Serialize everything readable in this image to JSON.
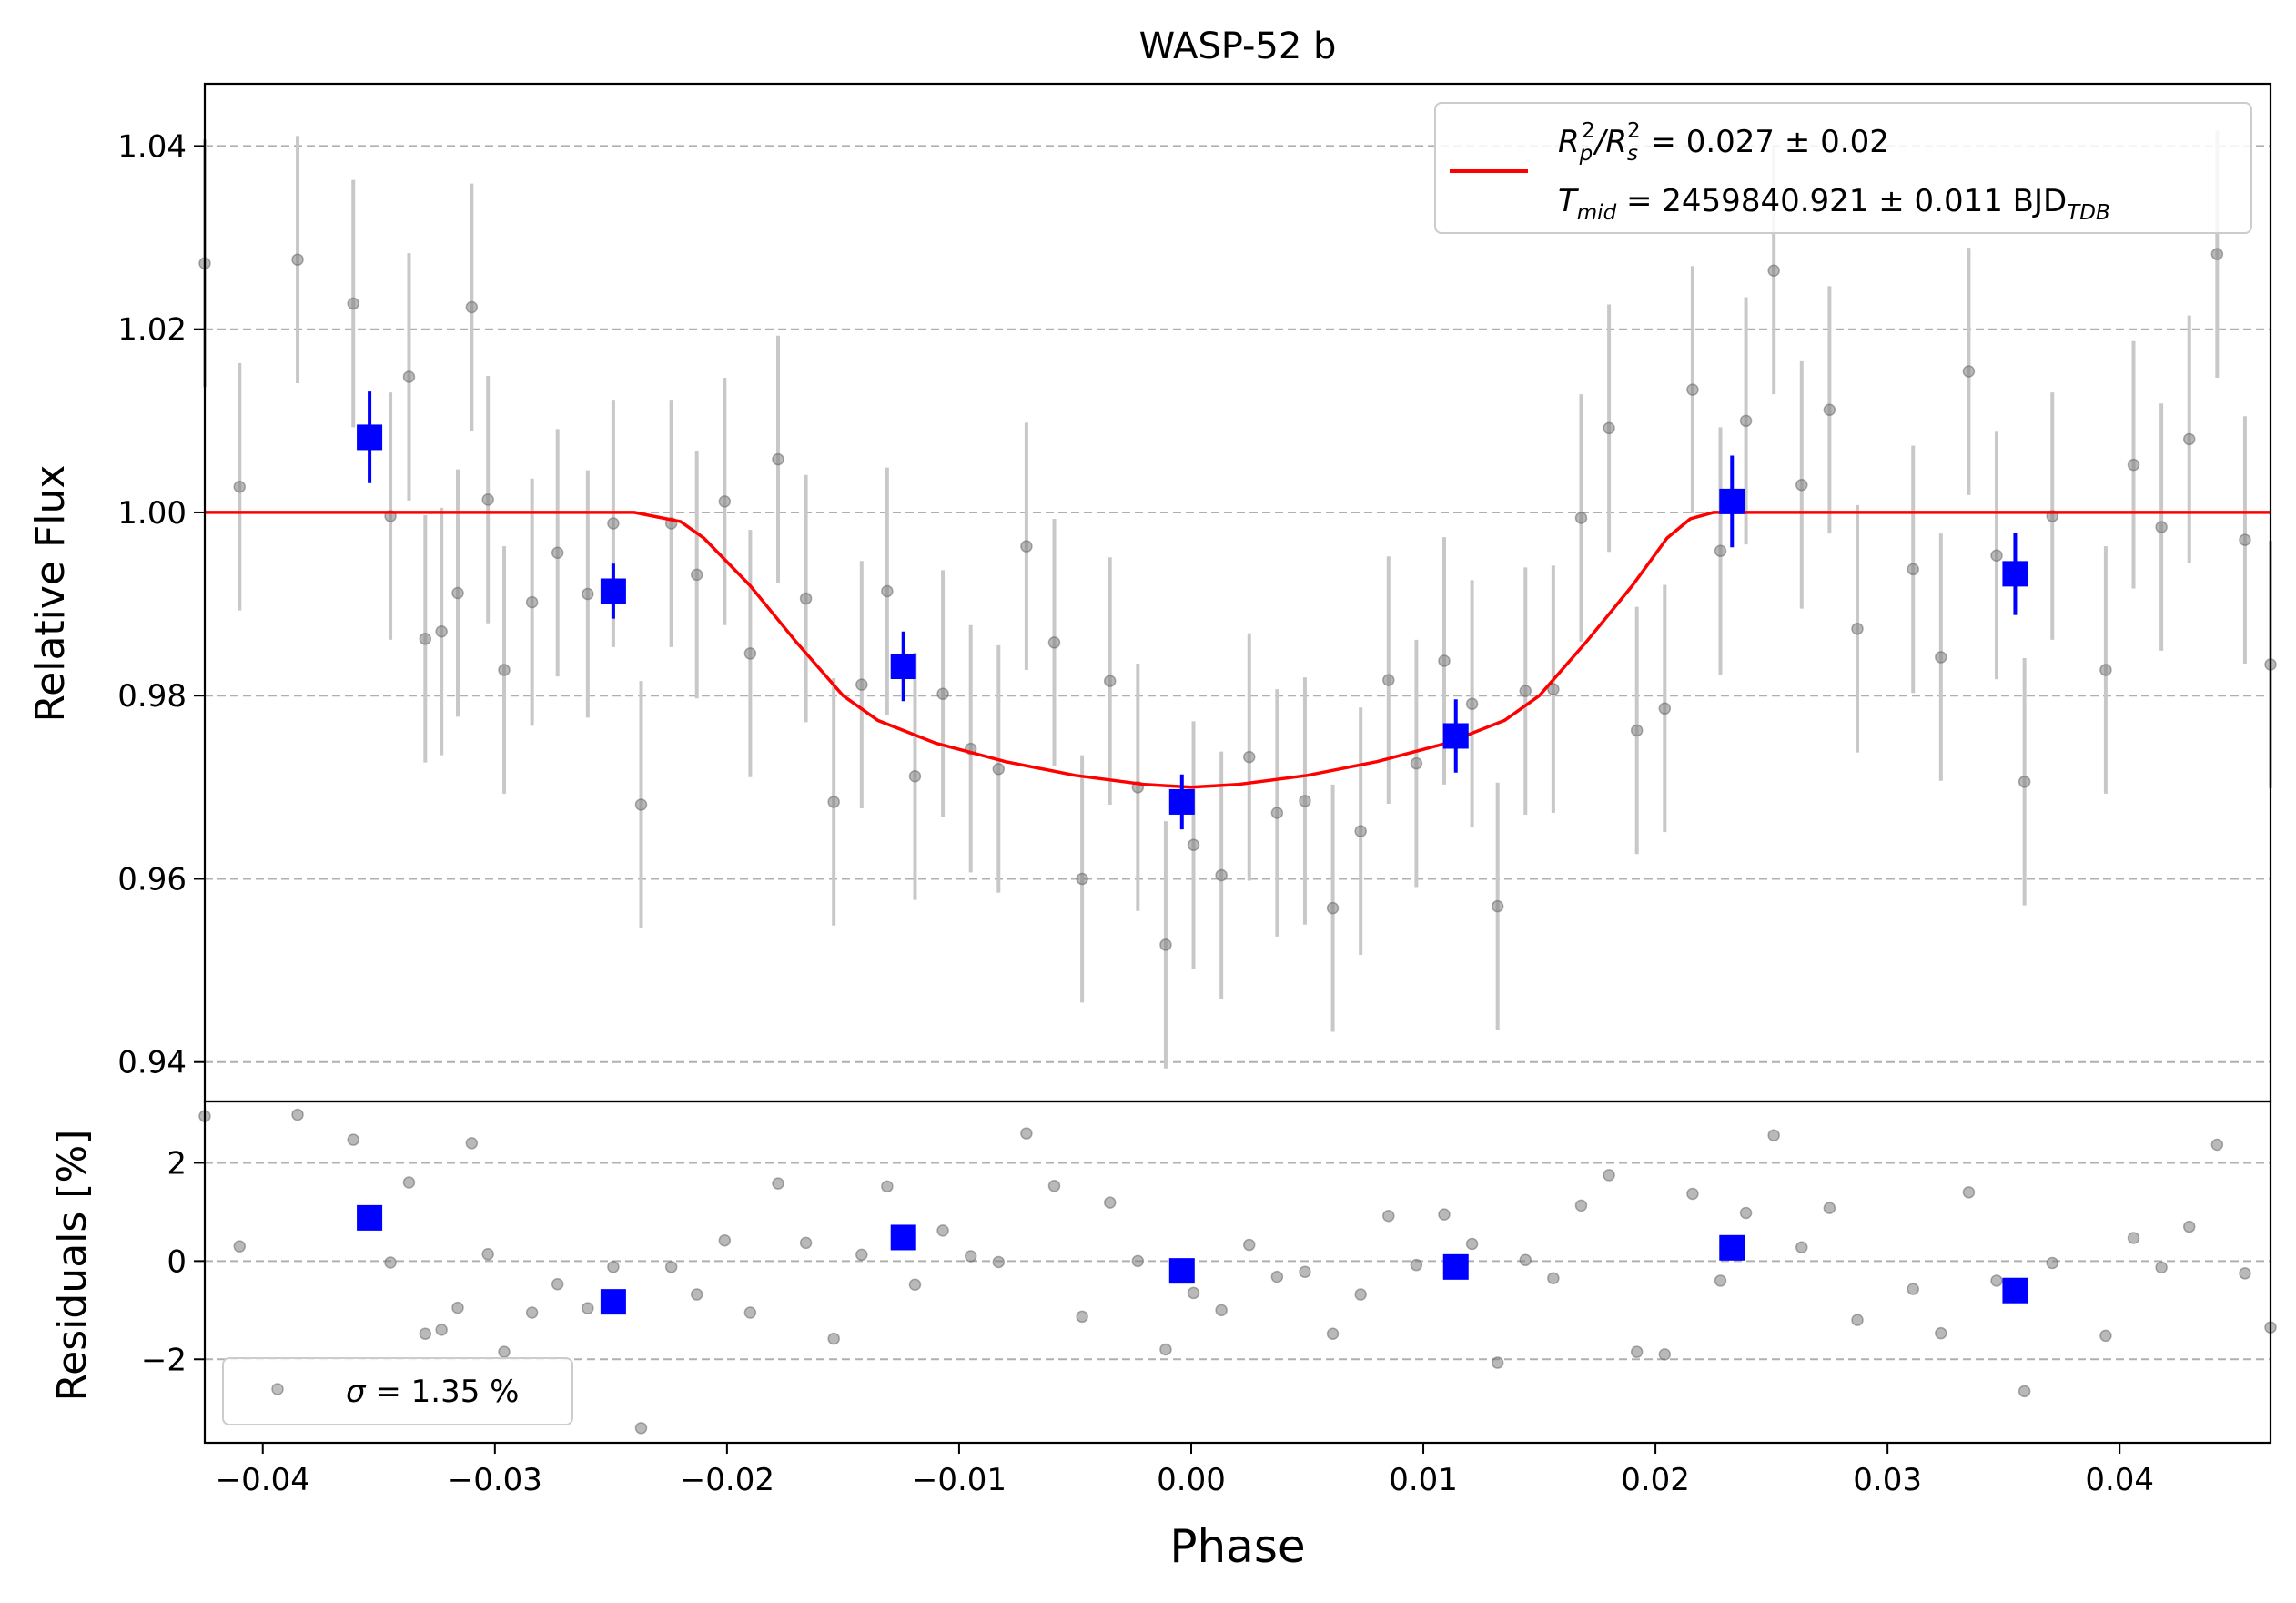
{
  "chart_data": {
    "type": "scatter",
    "title": "WASP-52 b",
    "xlabel": "Phase",
    "xlim": [
      -0.0425,
      0.0465
    ],
    "x_ticks": [
      -0.04,
      -0.03,
      -0.02,
      -0.01,
      0.0,
      0.01,
      0.02,
      0.03,
      0.04
    ],
    "x_tick_labels": [
      "−0.04",
      "−0.03",
      "−0.02",
      "−0.01",
      "0.00",
      "0.01",
      "0.02",
      "0.03",
      "0.04"
    ],
    "grid": "horizontal dashed",
    "colors": {
      "raw": "#808080",
      "errorbar": "#c8c8c8",
      "binned": "#0000ff",
      "model": "#ff0000"
    },
    "flux_panel": {
      "ylabel": "Relative Flux",
      "ylim": [
        0.9357,
        1.0468
      ],
      "y_ticks": [
        0.94,
        0.96,
        0.98,
        1.0,
        1.02,
        1.04
      ],
      "y_tick_labels": [
        "0.94",
        "0.96",
        "0.98",
        "1.00",
        "1.02",
        "1.04"
      ],
      "legend_position": "top-right",
      "legend_line1": {
        "a": "R",
        "b": "p",
        "c": "2",
        "d": "/R",
        "e": "s",
        "f": "2",
        "g": " = 0.027 ± 0.02"
      },
      "legend_line2": {
        "a": "T",
        "b": "mid",
        "c": " = 2459840.921 ± 0.011 BJD",
        "d": "TDB"
      },
      "raw_points": [
        {
          "x": -0.0425,
          "y": 1.0272,
          "err": 0.0135
        },
        {
          "x": -0.041,
          "y": 1.0028,
          "err": 0.0135
        },
        {
          "x": -0.0385,
          "y": 1.0276,
          "err": 0.0135
        },
        {
          "x": -0.0361,
          "y": 1.0228,
          "err": 0.0135
        },
        {
          "x": -0.0345,
          "y": 0.9996,
          "err": 0.0135
        },
        {
          "x": -0.0337,
          "y": 1.0148,
          "err": 0.0135
        },
        {
          "x": -0.033,
          "y": 0.9862,
          "err": 0.0135
        },
        {
          "x": -0.0323,
          "y": 0.987,
          "err": 0.0135
        },
        {
          "x": -0.0316,
          "y": 0.9912,
          "err": 0.0135
        },
        {
          "x": -0.031,
          "y": 1.0224,
          "err": 0.0135
        },
        {
          "x": -0.0303,
          "y": 1.0014,
          "err": 0.0135
        },
        {
          "x": -0.0296,
          "y": 0.9828,
          "err": 0.0135
        },
        {
          "x": -0.0284,
          "y": 0.9902,
          "err": 0.0135
        },
        {
          "x": -0.0273,
          "y": 0.9956,
          "err": 0.0135
        },
        {
          "x": -0.026,
          "y": 0.9911,
          "err": 0.0135
        },
        {
          "x": -0.0249,
          "y": 0.9988,
          "err": 0.0135
        },
        {
          "x": -0.0237,
          "y": 0.9681,
          "err": 0.0135
        },
        {
          "x": -0.0224,
          "y": 0.9988,
          "err": 0.0135
        },
        {
          "x": -0.0213,
          "y": 0.9932,
          "err": 0.0135
        },
        {
          "x": -0.0201,
          "y": 1.0012,
          "err": 0.0135
        },
        {
          "x": -0.019,
          "y": 0.9846,
          "err": 0.0135
        },
        {
          "x": -0.0178,
          "y": 1.0058,
          "err": 0.0135
        },
        {
          "x": -0.0166,
          "y": 0.9906,
          "err": 0.0135
        },
        {
          "x": -0.0154,
          "y": 0.9684,
          "err": 0.0135
        },
        {
          "x": -0.0142,
          "y": 0.9812,
          "err": 0.0135
        },
        {
          "x": -0.0131,
          "y": 0.9914,
          "err": 0.0135
        },
        {
          "x": -0.0119,
          "y": 0.9712,
          "err": 0.0135
        },
        {
          "x": -0.0107,
          "y": 0.9802,
          "err": 0.0135
        },
        {
          "x": -0.0095,
          "y": 0.9742,
          "err": 0.0135
        },
        {
          "x": -0.0083,
          "y": 0.972,
          "err": 0.0135
        },
        {
          "x": -0.0071,
          "y": 0.9963,
          "err": 0.0135
        },
        {
          "x": -0.0059,
          "y": 0.9858,
          "err": 0.0135
        },
        {
          "x": -0.0047,
          "y": 0.96,
          "err": 0.0135
        },
        {
          "x": -0.0035,
          "y": 0.9816,
          "err": 0.0135
        },
        {
          "x": -0.0023,
          "y": 0.97,
          "err": 0.0135
        },
        {
          "x": -0.0011,
          "y": 0.9528,
          "err": 0.0135
        },
        {
          "x": 0.0001,
          "y": 0.9637,
          "err": 0.0135
        },
        {
          "x": 0.0013,
          "y": 0.9604,
          "err": 0.0135
        },
        {
          "x": 0.0025,
          "y": 0.9733,
          "err": 0.0135
        },
        {
          "x": 0.0037,
          "y": 0.9672,
          "err": 0.0135
        },
        {
          "x": 0.0049,
          "y": 0.9685,
          "err": 0.0135
        },
        {
          "x": 0.0061,
          "y": 0.9568,
          "err": 0.0135
        },
        {
          "x": 0.0073,
          "y": 0.9652,
          "err": 0.0135
        },
        {
          "x": 0.0085,
          "y": 0.9817,
          "err": 0.0135
        },
        {
          "x": 0.0097,
          "y": 0.9726,
          "err": 0.0135
        },
        {
          "x": 0.0109,
          "y": 0.9838,
          "err": 0.0135
        },
        {
          "x": 0.0121,
          "y": 0.9791,
          "err": 0.0135
        },
        {
          "x": 0.0132,
          "y": 0.957,
          "err": 0.0135
        },
        {
          "x": 0.0144,
          "y": 0.9805,
          "err": 0.0135
        },
        {
          "x": 0.0156,
          "y": 0.9807,
          "err": 0.0135
        },
        {
          "x": 0.0168,
          "y": 0.9994,
          "err": 0.0135
        },
        {
          "x": 0.018,
          "y": 1.0092,
          "err": 0.0135
        },
        {
          "x": 0.0192,
          "y": 0.9762,
          "err": 0.0135
        },
        {
          "x": 0.0204,
          "y": 0.9786,
          "err": 0.0135
        },
        {
          "x": 0.0216,
          "y": 1.0134,
          "err": 0.0135
        },
        {
          "x": 0.0228,
          "y": 0.9958,
          "err": 0.0135
        },
        {
          "x": 0.0239,
          "y": 1.01,
          "err": 0.0135
        },
        {
          "x": 0.0251,
          "y": 1.0264,
          "err": 0.0135
        },
        {
          "x": 0.0263,
          "y": 1.003,
          "err": 0.0135
        },
        {
          "x": 0.0275,
          "y": 1.0112,
          "err": 0.0135
        },
        {
          "x": 0.0287,
          "y": 0.9873,
          "err": 0.0135
        },
        {
          "x": 0.0311,
          "y": 0.9938,
          "err": 0.0135
        },
        {
          "x": 0.0323,
          "y": 0.9842,
          "err": 0.0135
        },
        {
          "x": 0.0335,
          "y": 1.0154,
          "err": 0.0135
        },
        {
          "x": 0.0347,
          "y": 0.9953,
          "err": 0.0135
        },
        {
          "x": 0.0359,
          "y": 0.9706,
          "err": 0.0135
        },
        {
          "x": 0.0371,
          "y": 0.9996,
          "err": 0.0135
        },
        {
          "x": 0.0394,
          "y": 0.9828,
          "err": 0.0135
        },
        {
          "x": 0.0406,
          "y": 1.0052,
          "err": 0.0135
        },
        {
          "x": 0.0418,
          "y": 0.9984,
          "err": 0.0135
        },
        {
          "x": 0.043,
          "y": 1.008,
          "err": 0.0135
        },
        {
          "x": 0.0442,
          "y": 1.0282,
          "err": 0.0135
        },
        {
          "x": 0.0454,
          "y": 0.997,
          "err": 0.0135
        },
        {
          "x": 0.0465,
          "y": 0.9834,
          "err": 0.0135
        }
      ],
      "binned_points": [
        {
          "x": -0.0354,
          "y": 1.0082,
          "err": 0.005
        },
        {
          "x": -0.0249,
          "y": 0.9914,
          "err": 0.003
        },
        {
          "x": -0.0124,
          "y": 0.9832,
          "err": 0.0038
        },
        {
          "x": -0.0004,
          "y": 0.9684,
          "err": 0.003
        },
        {
          "x": 0.0114,
          "y": 0.9756,
          "err": 0.004
        },
        {
          "x": 0.0233,
          "y": 1.0012,
          "err": 0.005
        },
        {
          "x": 0.0355,
          "y": 0.9933,
          "err": 0.0045
        }
      ],
      "model": {
        "x": [
          -0.0425,
          -0.024,
          -0.022,
          -0.021,
          -0.019,
          -0.017,
          -0.015,
          -0.0135,
          -0.011,
          -0.008,
          -0.005,
          -0.002,
          0.0,
          0.002,
          0.005,
          0.008,
          0.011,
          0.0135,
          0.015,
          0.017,
          0.019,
          0.0205,
          0.0215,
          0.0225,
          0.0465
        ],
        "y": [
          1.0,
          1.0,
          0.999,
          0.9972,
          0.992,
          0.9858,
          0.98,
          0.9773,
          0.9748,
          0.9728,
          0.9713,
          0.9703,
          0.97,
          0.9703,
          0.9713,
          0.9728,
          0.9748,
          0.9773,
          0.98,
          0.9858,
          0.992,
          0.9972,
          0.9993,
          1.0,
          1.0
        ]
      }
    },
    "residual_panel": {
      "ylabel": "Residuals [%]",
      "ylim": [
        -3.7,
        3.25
      ],
      "y_ticks": [
        -2,
        0,
        2
      ],
      "y_tick_labels": [
        "−2",
        "0",
        "2"
      ],
      "legend_position": "bottom-left",
      "legend_label": {
        "a": "σ",
        "b": " = 1.35 %"
      },
      "raw_points": [
        {
          "x": -0.0425,
          "y": 2.95
        },
        {
          "x": -0.041,
          "y": 0.3
        },
        {
          "x": -0.0385,
          "y": 2.98
        },
        {
          "x": -0.0361,
          "y": 2.47
        },
        {
          "x": -0.0345,
          "y": -0.03
        },
        {
          "x": -0.0337,
          "y": 1.6
        },
        {
          "x": -0.033,
          "y": -1.48
        },
        {
          "x": -0.0323,
          "y": -1.4
        },
        {
          "x": -0.0316,
          "y": -0.95
        },
        {
          "x": -0.031,
          "y": 2.4
        },
        {
          "x": -0.0303,
          "y": 0.14
        },
        {
          "x": -0.0296,
          "y": -1.85
        },
        {
          "x": -0.0284,
          "y": -1.05
        },
        {
          "x": -0.0273,
          "y": -0.47
        },
        {
          "x": -0.026,
          "y": -0.96
        },
        {
          "x": -0.0249,
          "y": -0.12
        },
        {
          "x": -0.0237,
          "y": -3.4
        },
        {
          "x": -0.0224,
          "y": -0.12
        },
        {
          "x": -0.0213,
          "y": -0.68
        },
        {
          "x": -0.0201,
          "y": 0.42
        },
        {
          "x": -0.019,
          "y": -1.05
        },
        {
          "x": -0.0178,
          "y": 1.58
        },
        {
          "x": -0.0166,
          "y": 0.37
        },
        {
          "x": -0.0154,
          "y": -1.58
        },
        {
          "x": -0.0142,
          "y": 0.13
        },
        {
          "x": -0.0131,
          "y": 1.52
        },
        {
          "x": -0.0119,
          "y": -0.48
        },
        {
          "x": -0.0107,
          "y": 0.62
        },
        {
          "x": -0.0095,
          "y": 0.1
        },
        {
          "x": -0.0083,
          "y": -0.02
        },
        {
          "x": -0.0071,
          "y": 2.6
        },
        {
          "x": -0.0059,
          "y": 1.53
        },
        {
          "x": -0.0047,
          "y": -1.13
        },
        {
          "x": -0.0035,
          "y": 1.19
        },
        {
          "x": -0.0023,
          "y": 0.0
        },
        {
          "x": -0.0011,
          "y": -1.8
        },
        {
          "x": 0.0001,
          "y": -0.65
        },
        {
          "x": 0.0013,
          "y": -1.0
        },
        {
          "x": 0.0025,
          "y": 0.33
        },
        {
          "x": 0.0037,
          "y": -0.32
        },
        {
          "x": 0.0049,
          "y": -0.22
        },
        {
          "x": 0.0061,
          "y": -1.48
        },
        {
          "x": 0.0073,
          "y": -0.68
        },
        {
          "x": 0.0085,
          "y": 0.92
        },
        {
          "x": 0.0097,
          "y": -0.08
        },
        {
          "x": 0.0109,
          "y": 0.95
        },
        {
          "x": 0.0121,
          "y": 0.35
        },
        {
          "x": 0.0132,
          "y": -2.07
        },
        {
          "x": 0.0144,
          "y": 0.02
        },
        {
          "x": 0.0156,
          "y": -0.35
        },
        {
          "x": 0.0168,
          "y": 1.13
        },
        {
          "x": 0.018,
          "y": 1.75
        },
        {
          "x": 0.0192,
          "y": -1.85
        },
        {
          "x": 0.0204,
          "y": -1.9
        },
        {
          "x": 0.0216,
          "y": 1.37
        },
        {
          "x": 0.0228,
          "y": -0.4
        },
        {
          "x": 0.0239,
          "y": 0.98
        },
        {
          "x": 0.0251,
          "y": 2.56
        },
        {
          "x": 0.0263,
          "y": 0.28
        },
        {
          "x": 0.0275,
          "y": 1.08
        },
        {
          "x": 0.0287,
          "y": -1.2
        },
        {
          "x": 0.0311,
          "y": -0.57
        },
        {
          "x": 0.0323,
          "y": -1.47
        },
        {
          "x": 0.0335,
          "y": 1.4
        },
        {
          "x": 0.0347,
          "y": -0.4
        },
        {
          "x": 0.0359,
          "y": -2.65
        },
        {
          "x": 0.0371,
          "y": -0.04
        },
        {
          "x": 0.0394,
          "y": -1.52
        },
        {
          "x": 0.0406,
          "y": 0.47
        },
        {
          "x": 0.0418,
          "y": -0.13
        },
        {
          "x": 0.043,
          "y": 0.7
        },
        {
          "x": 0.0442,
          "y": 2.37
        },
        {
          "x": 0.0454,
          "y": -0.25
        },
        {
          "x": 0.0465,
          "y": -1.35
        }
      ],
      "binned_points": [
        {
          "x": -0.0354,
          "y": 0.88
        },
        {
          "x": -0.0249,
          "y": -0.83
        },
        {
          "x": -0.0124,
          "y": 0.48
        },
        {
          "x": -0.0004,
          "y": -0.2
        },
        {
          "x": 0.0114,
          "y": -0.12
        },
        {
          "x": 0.0233,
          "y": 0.27
        },
        {
          "x": 0.0355,
          "y": -0.6
        }
      ]
    }
  }
}
